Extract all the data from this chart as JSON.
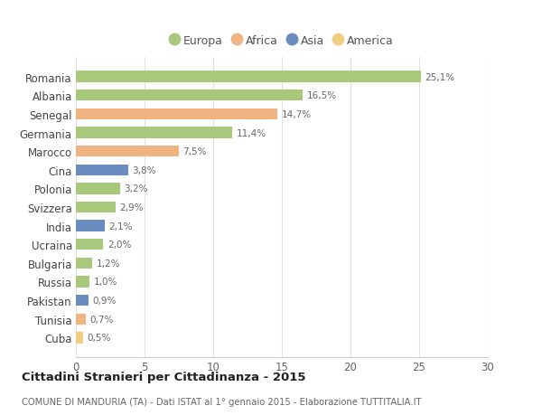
{
  "countries": [
    "Romania",
    "Albania",
    "Senegal",
    "Germania",
    "Marocco",
    "Cina",
    "Polonia",
    "Svizzera",
    "India",
    "Ucraina",
    "Bulgaria",
    "Russia",
    "Pakistan",
    "Tunisia",
    "Cuba"
  ],
  "values": [
    25.1,
    16.5,
    14.7,
    11.4,
    7.5,
    3.8,
    3.2,
    2.9,
    2.1,
    2.0,
    1.2,
    1.0,
    0.9,
    0.7,
    0.5
  ],
  "labels": [
    "25,1%",
    "16,5%",
    "14,7%",
    "11,4%",
    "7,5%",
    "3,8%",
    "3,2%",
    "2,9%",
    "2,1%",
    "2,0%",
    "1,2%",
    "1,0%",
    "0,9%",
    "0,7%",
    "0,5%"
  ],
  "continents": [
    "Europa",
    "Europa",
    "Africa",
    "Europa",
    "Africa",
    "Asia",
    "Europa",
    "Europa",
    "Asia",
    "Europa",
    "Europa",
    "Europa",
    "Asia",
    "Africa",
    "America"
  ],
  "colors": {
    "Europa": "#a8c87c",
    "Africa": "#f0b482",
    "Asia": "#6b8cbf",
    "America": "#f0cf82"
  },
  "legend_order": [
    "Europa",
    "Africa",
    "Asia",
    "America"
  ],
  "title": "Cittadini Stranieri per Cittadinanza - 2015",
  "subtitle": "COMUNE DI MANDURIA (TA) - Dati ISTAT al 1° gennaio 2015 - Elaborazione TUTTITALIA.IT",
  "xlim": [
    0,
    30
  ],
  "xticks": [
    0,
    5,
    10,
    15,
    20,
    25,
    30
  ],
  "background_color": "#ffffff",
  "grid_color": "#e0e0e0"
}
